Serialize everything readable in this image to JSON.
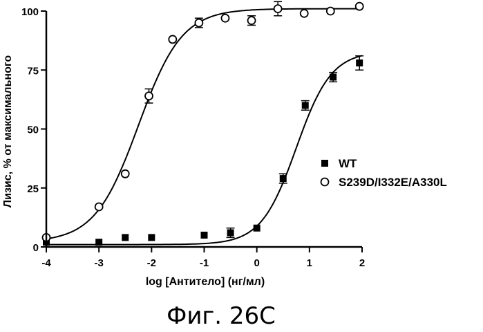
{
  "chart_data": {
    "type": "scatter",
    "xlabel": "log [Антитело] (нг/мл)",
    "ylabel": "Лизис, % от максимального",
    "caption": "Фиг. 26С",
    "xlim": [
      -4,
      2
    ],
    "ylim": [
      0,
      100
    ],
    "x_ticks": [
      "-4",
      "-3",
      "-2",
      "-1",
      "0",
      "1",
      "2"
    ],
    "y_ticks": [
      "0",
      "25",
      "50",
      "75",
      "100"
    ],
    "legend_position": "right",
    "series": [
      {
        "name": "WT",
        "marker": "filled-square",
        "x": [
          -4,
          -3,
          -2.5,
          -2,
          -1,
          -0.5,
          0,
          0.5,
          0.92,
          1.45,
          1.95
        ],
        "y": [
          2,
          2,
          4,
          4,
          5,
          6,
          8,
          29,
          60,
          72,
          78
        ],
        "err": [
          0,
          0,
          0,
          0,
          0,
          2,
          0,
          2,
          2,
          2,
          3
        ],
        "fit": {
          "bottom": 1,
          "top": 83,
          "logEC50": 0.75,
          "hill": 1.3
        }
      },
      {
        "name": "S239D/I332E/A330L",
        "marker": "open-circle",
        "x": [
          -4,
          -3,
          -2.5,
          -2.05,
          -1.6,
          -1.1,
          -0.6,
          -0.1,
          0.4,
          0.9,
          1.4,
          1.95
        ],
        "y": [
          4,
          17,
          31,
          64,
          88,
          95,
          97,
          96,
          101,
          99,
          100,
          102
        ],
        "err": [
          0,
          0,
          0,
          3,
          0,
          2,
          0,
          2,
          3,
          0,
          0,
          0
        ],
        "fit": {
          "bottom": 2,
          "top": 101,
          "logEC50": -2.25,
          "hill": 1.05
        }
      }
    ]
  }
}
